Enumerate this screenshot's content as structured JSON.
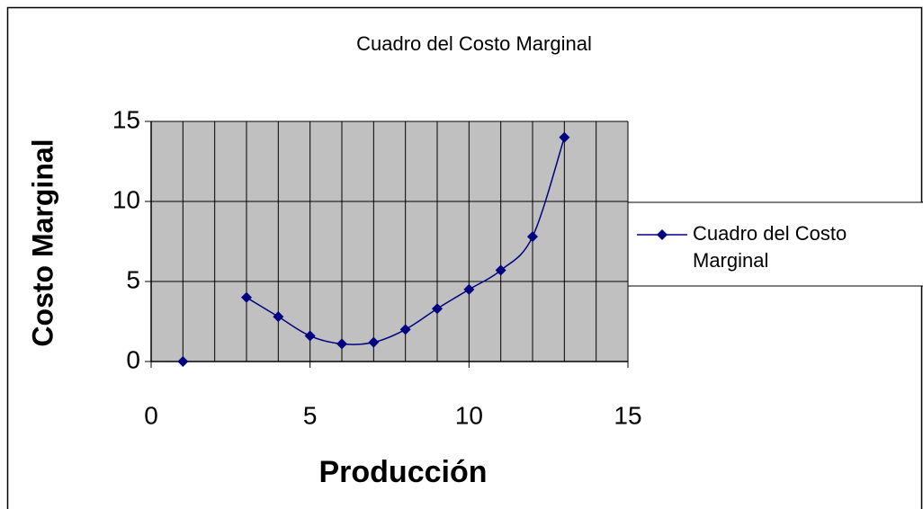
{
  "chart_data": {
    "type": "scatter_line",
    "title": "Cuadro del Costo Marginal",
    "x_label": "Producción",
    "y_label": "Costo Marginal",
    "x": [
      1,
      2,
      3,
      4,
      5,
      6,
      7,
      8,
      9,
      10,
      11,
      12,
      13
    ],
    "series": [
      {
        "name": "Cuadro del Costo Marginal",
        "color": "#000080",
        "values": [
          0,
          null,
          4,
          2.8,
          1.6,
          1.1,
          1.2,
          2.0,
          3.3,
          4.5,
          5.7,
          7.8,
          14
        ]
      }
    ],
    "xlim": [
      0,
      15
    ],
    "ylim": [
      0,
      15
    ],
    "xticks": [
      0,
      5,
      10,
      15
    ],
    "yticks": [
      0,
      5,
      10,
      15
    ],
    "xgrid": [
      1,
      2,
      3,
      4,
      5,
      6,
      7,
      8,
      9,
      10,
      11,
      12,
      13,
      14,
      15
    ],
    "smooth": true,
    "grid": true,
    "plot_background": "#c0c0c0",
    "legend": "right"
  }
}
